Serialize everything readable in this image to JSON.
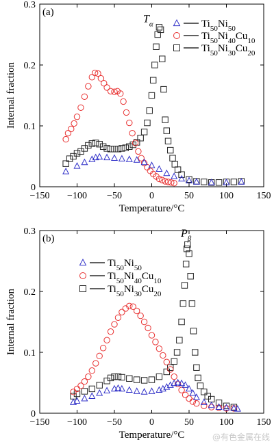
{
  "chart_data": [
    {
      "panel": "(a)",
      "type": "scatter",
      "xlabel": "Temperature/°C",
      "ylabel": "Internal fraction",
      "xlim": [
        -150,
        150
      ],
      "ylim": [
        0,
        0.3
      ],
      "xticks": [
        -150,
        -100,
        -50,
        0,
        50,
        100,
        150
      ],
      "yticks": [
        0,
        0.1,
        0.2,
        0.3
      ],
      "ytick_labels": [
        "0",
        "0.1",
        "0.2",
        "0.3"
      ],
      "grid": false,
      "legend_position": "top-right",
      "annotation": {
        "text": "T",
        "sub": "α",
        "x": 2,
        "y": 0.27
      },
      "series": [
        {
          "name": "Ti50Ni50",
          "name_parts": [
            [
              "Ti",
              ""
            ],
            [
              "50",
              "sub"
            ],
            [
              "Ni",
              ""
            ],
            [
              "50",
              "sub"
            ]
          ],
          "marker": "triangle",
          "color": "#3030c8",
          "x": [
            -115,
            -100,
            -90,
            -80,
            -75,
            -70,
            -60,
            -50,
            -40,
            -30,
            -20,
            -10,
            0,
            10,
            20,
            30,
            40,
            50,
            60,
            80,
            100,
            120
          ],
          "y": [
            0.025,
            0.034,
            0.04,
            0.045,
            0.048,
            0.049,
            0.048,
            0.047,
            0.046,
            0.045,
            0.044,
            0.04,
            0.035,
            0.029,
            0.022,
            0.017,
            0.013,
            0.01,
            0.008,
            0.007,
            0.007,
            0.008
          ]
        },
        {
          "name": "Ti50Ni40Cu10",
          "name_parts": [
            [
              "Ti",
              ""
            ],
            [
              "50",
              "sub"
            ],
            [
              "Ni",
              ""
            ],
            [
              "40",
              "sub"
            ],
            [
              "Cu",
              ""
            ],
            [
              "10",
              "sub"
            ]
          ],
          "marker": "circle",
          "color": "#e83030",
          "x": [
            -115,
            -112,
            -108,
            -104,
            -100,
            -95,
            -90,
            -85,
            -80,
            -76,
            -72,
            -68,
            -64,
            -60,
            -55,
            -50,
            -46,
            -42,
            -38,
            -34,
            -30,
            -26,
            -22,
            -18,
            -14,
            -10,
            -6,
            -2,
            2,
            6,
            10,
            14,
            18,
            22,
            26,
            30
          ],
          "y": [
            0.078,
            0.088,
            0.095,
            0.104,
            0.115,
            0.13,
            0.148,
            0.165,
            0.18,
            0.187,
            0.186,
            0.178,
            0.17,
            0.163,
            0.157,
            0.156,
            0.157,
            0.153,
            0.14,
            0.122,
            0.105,
            0.088,
            0.072,
            0.058,
            0.047,
            0.039,
            0.032,
            0.026,
            0.021,
            0.017,
            0.013,
            0.011,
            0.009,
            0.008,
            0.007,
            0.006
          ]
        },
        {
          "name": "Ti50Ni30Cu20",
          "name_parts": [
            [
              "Ti",
              ""
            ],
            [
              "50",
              "sub"
            ],
            [
              "Ni",
              ""
            ],
            [
              "30",
              "sub"
            ],
            [
              "Cu",
              ""
            ],
            [
              "20",
              "sub"
            ]
          ],
          "marker": "square",
          "color": "#222222",
          "x": [
            -115,
            -110,
            -105,
            -100,
            -95,
            -90,
            -85,
            -80,
            -75,
            -70,
            -65,
            -60,
            -55,
            -50,
            -45,
            -40,
            -35,
            -30,
            -25,
            -20,
            -15,
            -10,
            -6,
            -3,
            0,
            2,
            4,
            6,
            8,
            10,
            12,
            14,
            16,
            18,
            20,
            22,
            25,
            28,
            31,
            35,
            40,
            50,
            60,
            70,
            80,
            90,
            100,
            110,
            120
          ],
          "y": [
            0.038,
            0.046,
            0.05,
            0.055,
            0.058,
            0.063,
            0.068,
            0.071,
            0.072,
            0.07,
            0.066,
            0.063,
            0.062,
            0.062,
            0.062,
            0.063,
            0.064,
            0.066,
            0.069,
            0.073,
            0.08,
            0.09,
            0.105,
            0.125,
            0.15,
            0.175,
            0.2,
            0.23,
            0.25,
            0.262,
            0.258,
            0.21,
            0.16,
            0.11,
            0.092,
            0.075,
            0.06,
            0.047,
            0.037,
            0.028,
            0.02,
            0.012,
            0.009,
            0.008,
            0.007,
            0.007,
            0.008,
            0.008,
            0.009
          ]
        }
      ]
    },
    {
      "panel": "(b)",
      "type": "scatter",
      "xlabel": "Temperature/°C",
      "ylabel": "Internal fraction",
      "xlim": [
        -150,
        150
      ],
      "ylim": [
        0,
        0.3
      ],
      "xticks": [
        -150,
        -100,
        -50,
        0,
        50,
        100,
        150
      ],
      "yticks": [
        0,
        0.1,
        0.2,
        0.3
      ],
      "ytick_labels": [
        "0",
        "0.1",
        "0.2",
        "0.3"
      ],
      "grid": false,
      "legend_position": "top-left",
      "annotation": {
        "text": "P",
        "sub": "β",
        "x": 53,
        "y": 0.29
      },
      "series": [
        {
          "name": "Ti50Ni50",
          "name_parts": [
            [
              "Ti",
              ""
            ],
            [
              "50",
              "sub"
            ],
            [
              "Ni",
              ""
            ],
            [
              "50",
              "sub"
            ]
          ],
          "marker": "triangle",
          "color": "#3030c8",
          "x": [
            -105,
            -100,
            -90,
            -80,
            -70,
            -60,
            -50,
            -45,
            -40,
            -30,
            -20,
            -10,
            0,
            10,
            15,
            20,
            25,
            30,
            35,
            40,
            45,
            50,
            55,
            60,
            70,
            80,
            90,
            100,
            110,
            115
          ],
          "y": [
            0.018,
            0.02,
            0.024,
            0.028,
            0.033,
            0.037,
            0.04,
            0.041,
            0.04,
            0.038,
            0.036,
            0.035,
            0.036,
            0.038,
            0.04,
            0.043,
            0.046,
            0.049,
            0.05,
            0.049,
            0.046,
            0.04,
            0.033,
            0.026,
            0.018,
            0.013,
            0.01,
            0.009,
            0.008,
            0.007
          ]
        },
        {
          "name": "Ti50Ni40Cu10",
          "name_parts": [
            [
              "Ti",
              ""
            ],
            [
              "50",
              "sub"
            ],
            [
              "Ni",
              ""
            ],
            [
              "40",
              "sub"
            ],
            [
              "Cu",
              ""
            ],
            [
              "10",
              "sub"
            ]
          ],
          "marker": "circle",
          "color": "#e83030",
          "x": [
            -105,
            -100,
            -95,
            -90,
            -85,
            -80,
            -75,
            -70,
            -65,
            -60,
            -55,
            -50,
            -45,
            -40,
            -35,
            -30,
            -25,
            -20,
            -15,
            -10,
            -5,
            0,
            5,
            10,
            15,
            20,
            25,
            30,
            35,
            40,
            45,
            50,
            55,
            60,
            70,
            80,
            90,
            100,
            110
          ],
          "y": [
            0.035,
            0.04,
            0.045,
            0.052,
            0.06,
            0.07,
            0.082,
            0.094,
            0.107,
            0.12,
            0.134,
            0.146,
            0.157,
            0.166,
            0.172,
            0.176,
            0.175,
            0.168,
            0.16,
            0.15,
            0.14,
            0.128,
            0.117,
            0.106,
            0.095,
            0.084,
            0.072,
            0.06,
            0.048,
            0.038,
            0.03,
            0.024,
            0.019,
            0.016,
            0.012,
            0.01,
            0.009,
            0.008,
            0.008
          ]
        },
        {
          "name": "Ti50Ni30Cu20",
          "name_parts": [
            [
              "Ti",
              ""
            ],
            [
              "50",
              "sub"
            ],
            [
              "Ni",
              ""
            ],
            [
              "30",
              "sub"
            ],
            [
              "Cu",
              ""
            ],
            [
              "20",
              "sub"
            ]
          ],
          "marker": "square",
          "color": "#222222",
          "x": [
            -105,
            -100,
            -90,
            -80,
            -70,
            -60,
            -55,
            -50,
            -45,
            -40,
            -30,
            -20,
            -10,
            0,
            10,
            20,
            25,
            30,
            34,
            37,
            40,
            42,
            44,
            46,
            47,
            48,
            50,
            52,
            54,
            56,
            58,
            60,
            62,
            65,
            70,
            75,
            80,
            90,
            100,
            110
          ],
          "y": [
            0.028,
            0.032,
            0.036,
            0.04,
            0.046,
            0.053,
            0.058,
            0.06,
            0.06,
            0.059,
            0.057,
            0.055,
            0.054,
            0.055,
            0.06,
            0.068,
            0.075,
            0.085,
            0.1,
            0.12,
            0.15,
            0.18,
            0.21,
            0.245,
            0.27,
            0.277,
            0.262,
            0.225,
            0.18,
            0.135,
            0.1,
            0.075,
            0.058,
            0.045,
            0.035,
            0.028,
            0.023,
            0.017,
            0.012,
            0.01
          ]
        }
      ]
    }
  ],
  "watermark": "@有色金属在线"
}
